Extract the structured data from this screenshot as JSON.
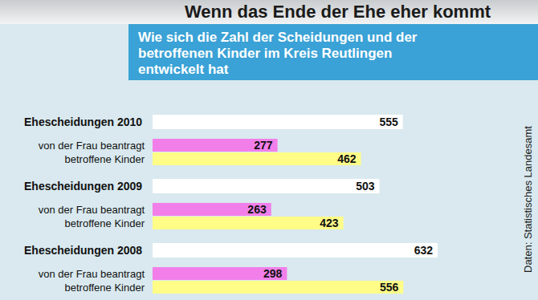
{
  "chart_data": {
    "type": "bar",
    "orientation": "horizontal",
    "title": "Wenn das Ende der Ehe eher kommt",
    "subtitle": "Wie sich die Zahl der Scheidungen und der betroffenen Kinder im Kreis Reutlingen entwickelt hat",
    "source": "Daten: Statistisches Landesamt",
    "categories": [
      "Ehescheidungen 2010",
      "von der Frau beantragt",
      "betroffene Kinder",
      "Ehescheidungen 2009",
      "von der Frau beantragt",
      "betroffene Kinder",
      "Ehescheidungen 2008",
      "von der Frau beantragt",
      "betroffene Kinder"
    ],
    "values": [
      555,
      277,
      462,
      503,
      263,
      423,
      632,
      298,
      556
    ],
    "colors": [
      "#ffffff",
      "#f27fe9",
      "#fffd88",
      "#ffffff",
      "#f27fe9",
      "#fffd88",
      "#ffffff",
      "#f27fe9",
      "#fffd88"
    ],
    "data_labels": true,
    "tick_labels": "y"
  }
}
